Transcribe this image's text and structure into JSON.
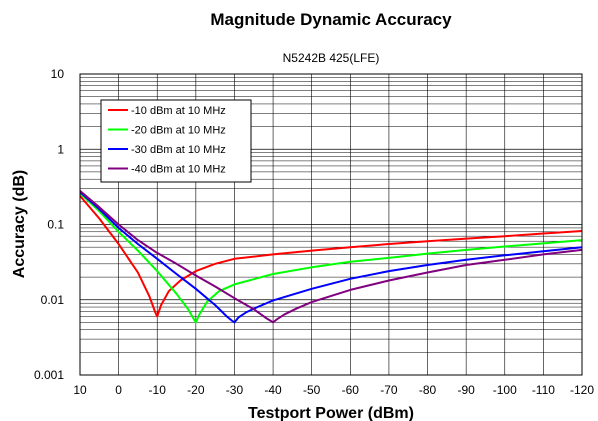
{
  "chart_data": {
    "type": "line",
    "title": "Magnitude Dynamic Accuracy",
    "subtitle": "N5242B 425(LFE)",
    "xlabel": "Testport Power (dBm)",
    "ylabel": "Accuracy (dB)",
    "xlim": [
      10,
      -120
    ],
    "ylim": [
      0.001,
      10
    ],
    "yscale": "log",
    "x_ticks": [
      10,
      0,
      -10,
      -20,
      -30,
      -40,
      -50,
      -60,
      -70,
      -80,
      -90,
      -100,
      -110,
      -120
    ],
    "y_ticks": [
      10,
      1,
      0.1,
      0.01,
      0.001
    ],
    "x_tick_labels": [
      "10",
      "0",
      "-10",
      "-20",
      "-30",
      "-40",
      "-50",
      "-60",
      "-70",
      "-80",
      "-90",
      "-100",
      "-110",
      "-120"
    ],
    "y_tick_labels": [
      "10",
      "1",
      "0.1",
      "0.01",
      "0.001"
    ],
    "grid": true,
    "legend_position": "top-left",
    "series": [
      {
        "name": "-10 dBm at 10 MHz",
        "color": "#ff0000",
        "x": [
          10,
          5,
          0,
          -5,
          -8,
          -9.5,
          -10,
          -11,
          -13,
          -16,
          -20,
          -25,
          -30,
          -40,
          -50,
          -60,
          -70,
          -80,
          -90,
          -100,
          -110,
          -120
        ],
        "y": [
          0.24,
          0.12,
          0.055,
          0.023,
          0.011,
          0.0068,
          0.006,
          0.0085,
          0.013,
          0.018,
          0.024,
          0.03,
          0.035,
          0.04,
          0.045,
          0.05,
          0.055,
          0.06,
          0.065,
          0.07,
          0.076,
          0.082
        ]
      },
      {
        "name": "-20 dBm at 10 MHz",
        "color": "#00ff00",
        "x": [
          10,
          5,
          0,
          -5,
          -10,
          -15,
          -18,
          -19.5,
          -20,
          -21,
          -23,
          -26,
          -30,
          -40,
          -50,
          -60,
          -70,
          -80,
          -90,
          -100,
          -110,
          -120
        ],
        "y": [
          0.26,
          0.15,
          0.08,
          0.045,
          0.024,
          0.012,
          0.0075,
          0.0055,
          0.005,
          0.0065,
          0.0095,
          0.013,
          0.016,
          0.022,
          0.027,
          0.032,
          0.036,
          0.041,
          0.046,
          0.051,
          0.056,
          0.062
        ]
      },
      {
        "name": "-30 dBm at 10 MHz",
        "color": "#0000ff",
        "x": [
          10,
          5,
          0,
          -5,
          -10,
          -15,
          -20,
          -25,
          -28,
          -29.5,
          -30,
          -31,
          -33,
          -36,
          -40,
          -50,
          -60,
          -70,
          -80,
          -90,
          -100,
          -110,
          -120
        ],
        "y": [
          0.27,
          0.16,
          0.09,
          0.055,
          0.035,
          0.022,
          0.014,
          0.0085,
          0.006,
          0.0052,
          0.005,
          0.0058,
          0.0068,
          0.008,
          0.0098,
          0.014,
          0.019,
          0.024,
          0.029,
          0.034,
          0.039,
          0.044,
          0.05
        ]
      },
      {
        "name": "-40 dBm at 10 MHz",
        "color": "#800080",
        "x": [
          10,
          5,
          0,
          -5,
          -10,
          -15,
          -20,
          -25,
          -30,
          -35,
          -38,
          -39.5,
          -40,
          -41,
          -43,
          -46,
          -50,
          -60,
          -70,
          -80,
          -90,
          -100,
          -110,
          -120
        ],
        "y": [
          0.28,
          0.17,
          0.1,
          0.062,
          0.042,
          0.03,
          0.021,
          0.015,
          0.0105,
          0.0075,
          0.0058,
          0.0052,
          0.005,
          0.0055,
          0.0064,
          0.0076,
          0.0093,
          0.0135,
          0.018,
          0.023,
          0.029,
          0.034,
          0.04,
          0.046
        ]
      }
    ]
  }
}
